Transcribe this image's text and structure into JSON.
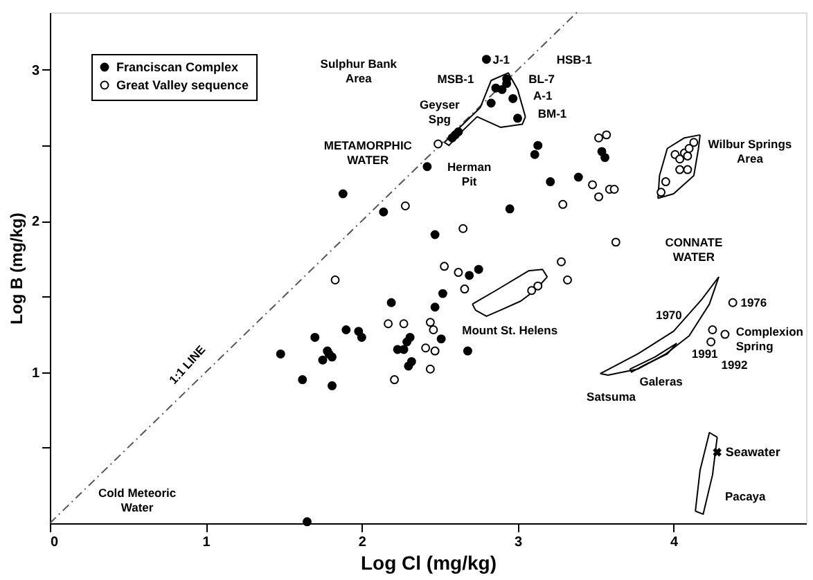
{
  "chart_data": {
    "type": "scatter",
    "xlabel": "Log Cl (mg/kg)",
    "ylabel": "Log B (mg/kg)",
    "xlim": [
      0,
      4.85
    ],
    "ylim": [
      0,
      3.38
    ],
    "xticks": [
      0,
      1,
      2,
      3,
      4
    ],
    "yticks": [
      {
        "value": 0.5,
        "label": null
      },
      1,
      {
        "value": 1.5,
        "label": null
      },
      2,
      {
        "value": 2.5,
        "label": null
      },
      3
    ],
    "grid": false,
    "legend": "top left",
    "series": [
      {
        "name": "Franciscan Complex",
        "marker": "circle",
        "color": "#000000",
        "x": [
          1.88,
          2.14,
          2.42,
          2.19,
          1.9,
          1.98,
          2.0,
          1.7,
          1.48,
          1.78,
          1.79,
          1.75,
          1.81,
          1.62,
          1.81,
          2.31,
          2.23,
          2.27,
          2.32,
          1.65,
          2.69,
          2.75,
          2.52,
          2.47,
          2.51,
          2.29,
          2.68,
          2.3,
          2.8,
          2.93,
          2.9,
          2.93,
          2.86,
          2.97,
          2.83,
          3.0,
          2.58,
          2.6,
          2.62,
          3.54,
          3.56,
          3.13,
          3.11,
          3.21,
          3.39,
          2.95,
          2.47
        ],
        "values": [
          2.18,
          2.06,
          2.36,
          1.46,
          1.28,
          1.27,
          1.23,
          1.23,
          1.12,
          1.14,
          1.12,
          1.08,
          1.1,
          0.95,
          0.91,
          1.23,
          1.15,
          1.15,
          1.07,
          0.01,
          1.64,
          1.68,
          1.52,
          1.43,
          1.22,
          1.2,
          1.14,
          1.04,
          3.07,
          2.94,
          2.87,
          2.91,
          2.88,
          2.81,
          2.78,
          2.68,
          2.55,
          2.57,
          2.59,
          2.46,
          2.42,
          2.5,
          2.44,
          2.26,
          2.29,
          2.08,
          1.91
        ]
      },
      {
        "name": "Great Valley sequence",
        "marker": "circle",
        "color": "#000000",
        "x": [
          2.28,
          1.83,
          2.17,
          2.27,
          2.21,
          2.53,
          2.62,
          2.66,
          2.44,
          2.46,
          2.41,
          2.47,
          2.44,
          3.28,
          3.32,
          3.09,
          3.13,
          4.38,
          4.25,
          4.33,
          4.24,
          2.49,
          3.52,
          3.57,
          3.48,
          3.52,
          3.59,
          3.62,
          3.29,
          3.63,
          2.65,
          4.01,
          4.07,
          4.13,
          4.1,
          4.04,
          4.09,
          4.04,
          4.09,
          3.95,
          3.92
        ],
        "values": [
          2.1,
          1.61,
          1.32,
          1.32,
          0.95,
          1.7,
          1.66,
          1.55,
          1.33,
          1.28,
          1.16,
          1.14,
          1.02,
          1.73,
          1.61,
          1.54,
          1.57,
          1.46,
          1.28,
          1.25,
          1.2,
          2.51,
          2.55,
          2.57,
          2.24,
          2.16,
          2.21,
          2.21,
          2.11,
          1.86,
          1.95,
          2.44,
          2.45,
          2.52,
          2.48,
          2.41,
          2.43,
          2.34,
          2.34,
          2.26,
          2.19
        ]
      },
      {
        "name": "Seawater",
        "marker": "cross",
        "color": "#000000",
        "x": [
          4.28
        ],
        "values": [
          0.47
        ]
      },
      {
        "type": "line",
        "line_style": "dashed",
        "color": "#555555",
        "x": [
          0,
          3.38
        ],
        "values": [
          0,
          3.38
        ]
      },
      {
        "type": "line",
        "color": "#000000",
        "x": [
          2.53,
          2.69,
          2.76,
          2.83,
          2.94,
          3.0,
          3.05
        ],
        "values": [
          2.52,
          2.68,
          2.75,
          2.93,
          2.98,
          2.87,
          2.69
        ]
      },
      {
        "type": "line",
        "color": "#000000",
        "x": [
          2.53,
          2.56,
          2.62,
          2.74,
          2.89,
          3.03,
          3.05
        ],
        "values": [
          2.52,
          2.5,
          2.57,
          2.69,
          2.62,
          2.64,
          2.69
        ]
      },
      {
        "type": "line",
        "color": "#000000",
        "x": [
          3.9,
          3.91,
          3.96,
          4.07,
          4.17
        ],
        "values": [
          2.15,
          2.3,
          2.48,
          2.55,
          2.57
        ]
      },
      {
        "type": "line",
        "color": "#000000",
        "x": [
          3.9,
          4.0,
          4.13,
          4.16,
          4.17
        ],
        "values": [
          2.15,
          2.18,
          2.3,
          2.48,
          2.57
        ]
      },
      {
        "type": "line",
        "color": "#000000",
        "x": [
          2.71,
          2.86,
          3.07,
          3.16,
          3.19
        ],
        "values": [
          1.45,
          1.54,
          1.67,
          1.68,
          1.63
        ]
      },
      {
        "type": "line",
        "color": "#000000",
        "x": [
          2.71,
          2.73,
          2.8,
          2.89,
          3.02,
          3.11,
          3.19
        ],
        "values": [
          1.45,
          1.41,
          1.37,
          1.41,
          1.47,
          1.54,
          1.63
        ]
      },
      {
        "type": "line",
        "color": "#000000",
        "x": [
          3.53,
          3.77,
          4.0,
          4.18,
          4.29
        ],
        "values": [
          0.99,
          1.12,
          1.27,
          1.48,
          1.63
        ]
      },
      {
        "type": "line",
        "color": "#000000",
        "x": [
          3.53,
          3.58,
          3.77,
          3.95,
          4.1,
          4.23,
          4.29
        ],
        "values": [
          0.99,
          0.98,
          1.02,
          1.12,
          1.24,
          1.45,
          1.63
        ]
      },
      {
        "type": "line",
        "color": "#000000",
        "x": [
          3.72,
          3.88,
          4.02
        ],
        "values": [
          1.02,
          1.1,
          1.19
        ]
      },
      {
        "type": "line",
        "color": "#000000",
        "x": [
          3.72,
          3.73,
          3.82,
          3.96,
          4.02
        ],
        "values": [
          1.02,
          1.0,
          1.05,
          1.12,
          1.19
        ]
      },
      {
        "type": "line",
        "color": "#000000",
        "x": [
          4.14,
          4.17,
          4.23,
          4.28
        ],
        "values": [
          0.08,
          0.35,
          0.6,
          0.57
        ]
      },
      {
        "type": "line",
        "color": "#000000",
        "x": [
          4.14,
          4.19,
          4.25,
          4.28
        ],
        "values": [
          0.08,
          0.06,
          0.32,
          0.57
        ]
      }
    ],
    "annotations": [
      "Sulphur Bank\nArea",
      "METAMORPHIC\nWATER",
      "Geyser\nSpg",
      "MSB-1",
      "J-1",
      "HSB-1",
      "BL-7",
      "A-1",
      "BM-1",
      "Herman\nPit",
      "Wilbur Springs\nArea",
      "CONNATE\nWATER",
      "1:1 LINE",
      "Cold Meteoric\nWater",
      "Mount St. Helens",
      "1970",
      "1976",
      "Complexion\nSpring",
      "1991",
      "1992",
      "Satsuma",
      "Galeras",
      "Pacaya"
    ]
  }
}
